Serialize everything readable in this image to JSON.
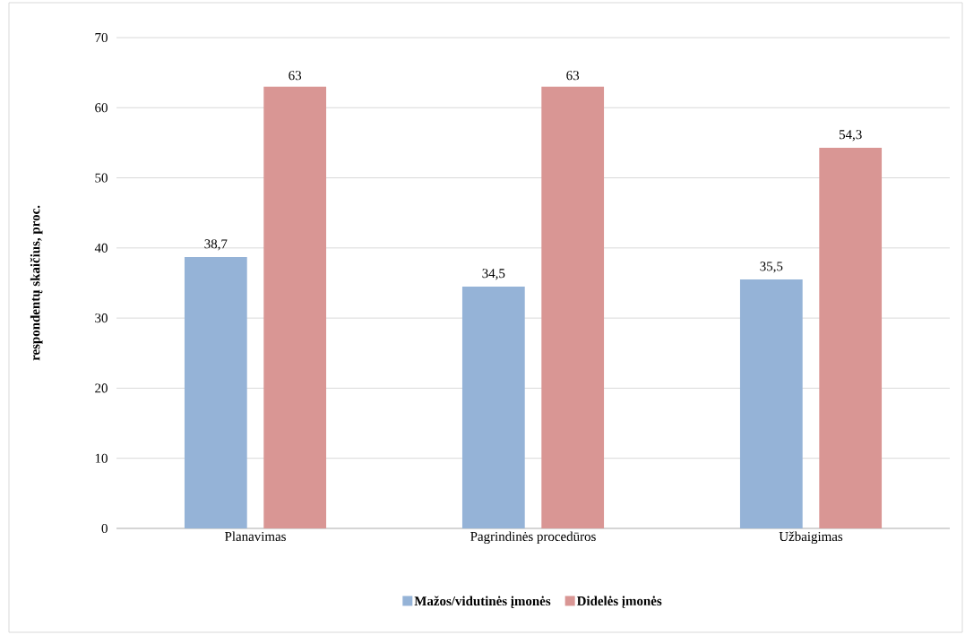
{
  "chart_data": {
    "type": "bar",
    "ylabel": "respondentų skaičius, proc.",
    "categories": [
      "Planavimas",
      "Pagrindinės procedūros",
      "Užbaigimas"
    ],
    "series": [
      {
        "name": "Mažos/vidutinės įmonės",
        "color": "#95b3d7",
        "values": [
          38.7,
          34.5,
          35.5
        ],
        "value_labels": [
          "38,7",
          "34,5",
          "35,5"
        ]
      },
      {
        "name": "Didelės įmonės",
        "color": "#d99694",
        "values": [
          63,
          63,
          54.3
        ],
        "value_labels": [
          "63",
          "63",
          "54,3"
        ]
      }
    ],
    "ylim": [
      0,
      70
    ],
    "yticks": [
      0,
      10,
      20,
      30,
      40,
      50,
      60,
      70
    ],
    "grid": "y",
    "legend": "bottom"
  }
}
